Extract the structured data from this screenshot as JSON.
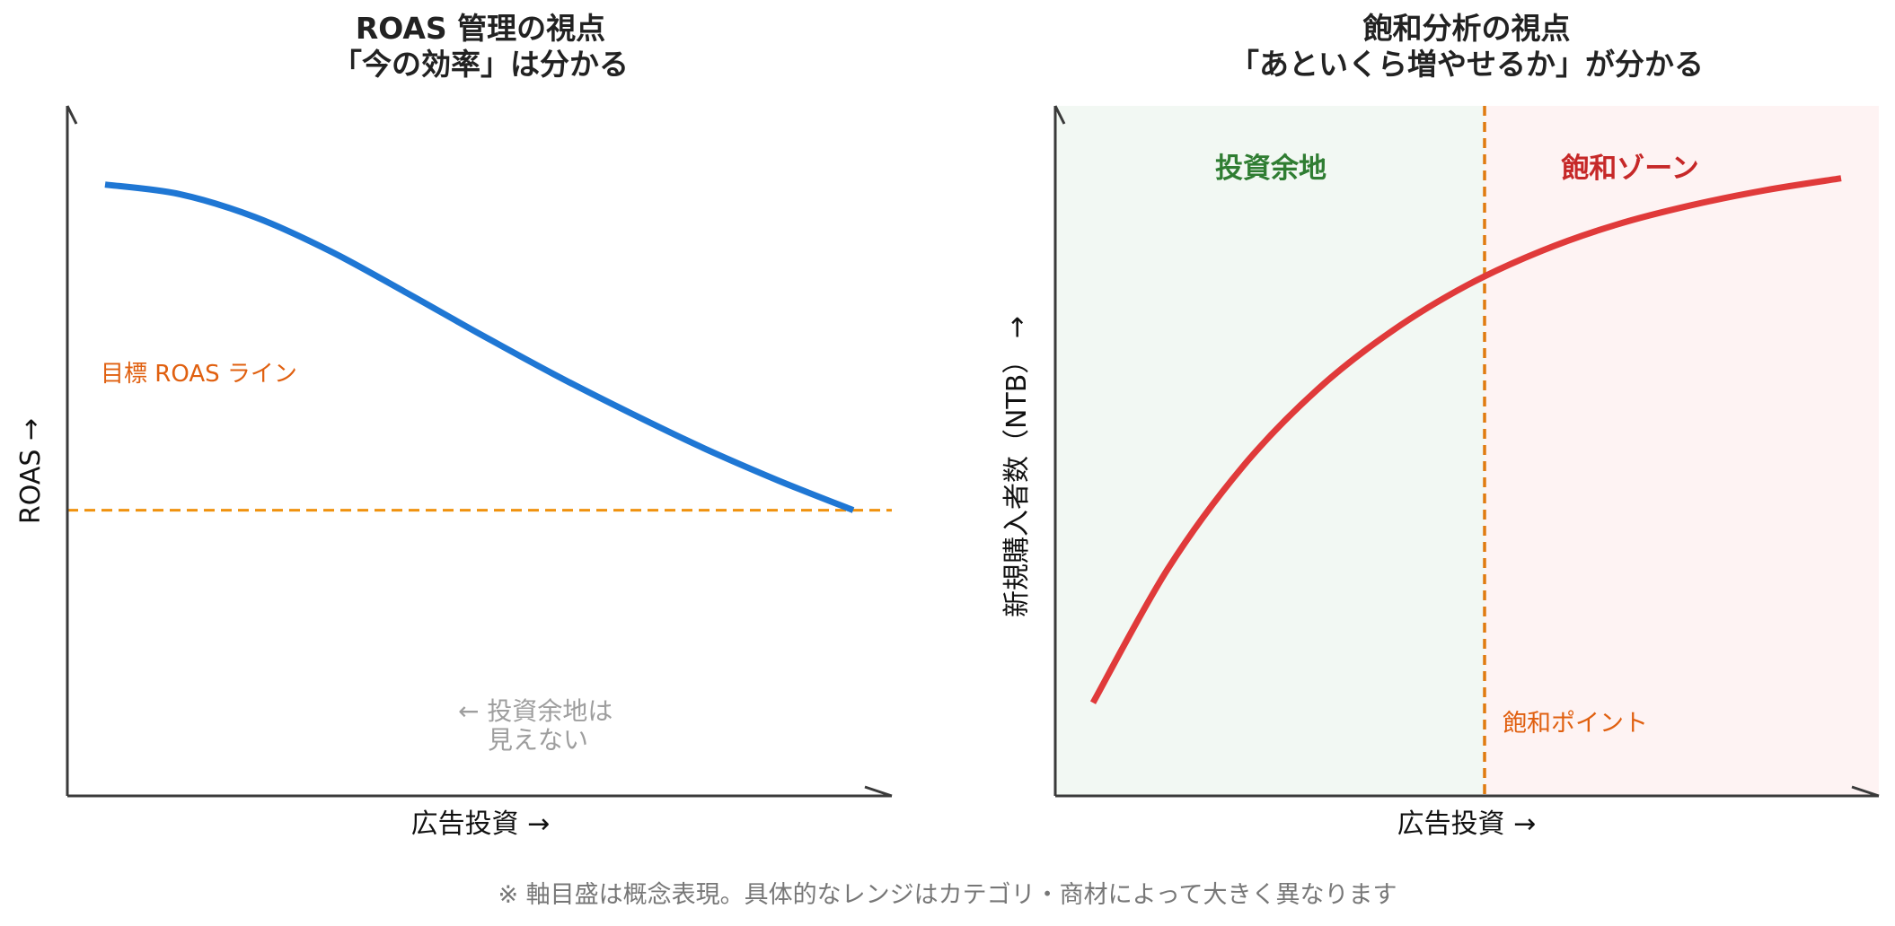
{
  "chart_data": [
    {
      "type": "line",
      "title_line1": "ROAS 管理の視点",
      "title_line2": "「今の効率」は分かる",
      "xlabel": "広告投資 →",
      "ylabel": "ROAS →",
      "xlim": [
        0,
        100
      ],
      "ylim": [
        0,
        100
      ],
      "grid": false,
      "series": [
        {
          "color": "#1f77d4",
          "x": [
            0,
            10,
            20,
            30,
            40,
            50,
            60,
            70,
            80,
            90,
            100
          ],
          "y": [
            88.6,
            87.2,
            83.9,
            79.0,
            73.1,
            67.0,
            61.1,
            55.6,
            50.4,
            45.7,
            41.4
          ]
        }
      ],
      "reference_line": {
        "y": 41.4,
        "label": "目標 ROAS ライン",
        "color": "#f0920f",
        "label_color": "#e06010"
      },
      "annotation_line1": "← 投資余地は",
      "annotation_line2": "見えない",
      "annotation_color": "#9e9e9e"
    },
    {
      "type": "line",
      "title_line1": "飽和分析の視点",
      "title_line2": "「あといくら増やせるか」が分かる",
      "xlabel": "広告投資 →",
      "ylabel": "新規購入者数（NTB） →",
      "xlim": [
        0,
        100
      ],
      "ylim": [
        0,
        100
      ],
      "grid": false,
      "series": [
        {
          "color": "#e03a3a",
          "x": [
            0,
            10,
            20,
            30,
            40,
            50,
            60,
            70,
            80,
            90,
            100
          ],
          "y": [
            13.5,
            32.9,
            47.7,
            58.9,
            67.4,
            74.0,
            79.0,
            82.8,
            85.6,
            87.8,
            89.5
          ]
        }
      ],
      "saturation_x": 50,
      "saturation_label": "飽和ポイント",
      "saturation_color": "#e07b10",
      "zones": [
        {
          "label": "投資余地",
          "color": "#2f7d32",
          "fill": "#f2f8f3",
          "from": 0,
          "to": 50
        },
        {
          "label": "飽和ゾーン",
          "color": "#c62828",
          "fill": "#fef3f3",
          "from": 50,
          "to": 100
        }
      ]
    }
  ],
  "footnote": "※ 軸目盛は概念表現。具体的なレンジはカテゴリ・商材によって大きく異なります",
  "colors": {
    "axis": "#3a3a3a",
    "title": "#222222",
    "label": "#111111",
    "footnote": "#777777"
  }
}
